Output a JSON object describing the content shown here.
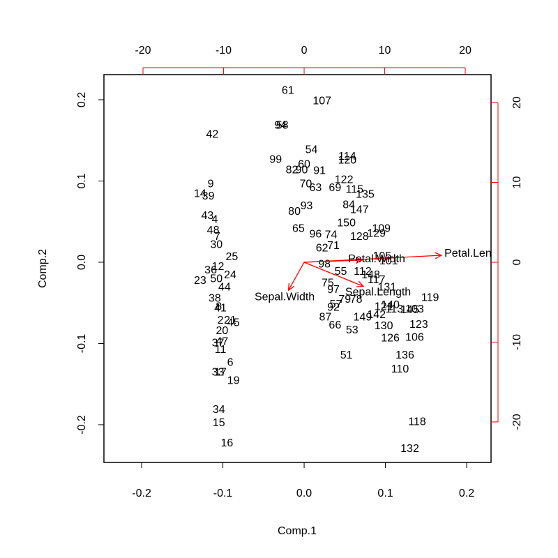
{
  "chart_data": {
    "type": "biplot",
    "xlabel": "Comp.1",
    "ylabel": "Comp.2",
    "xlim": [
      -0.2464,
      0.23
    ],
    "ylim": [
      -0.2464,
      0.2309
    ],
    "xticks": [
      -0.2,
      -0.1,
      {
        "value": 0,
        "label": "0.0"
      },
      0.1,
      0.2
    ],
    "yticks": [
      -0.2,
      -0.1,
      {
        "value": 0,
        "label": "0.0"
      },
      0.1,
      0.2
    ],
    "x2lim": [
      -24.85,
      23.2
    ],
    "y2lim": [
      -25.07,
      23.5
    ],
    "x2ticks": [
      -20,
      -10,
      0,
      10,
      20
    ],
    "y2ticks": [
      -20,
      -10,
      0,
      10,
      20
    ],
    "point_color": "#000000",
    "arrow_color": "#ff0000",
    "points": {
      "labels": [
        "61",
        "107",
        "94",
        "58",
        "42",
        "54",
        "114",
        "120",
        "99",
        "60",
        "82",
        "90",
        "91",
        "9",
        "70",
        "122",
        "14",
        "39",
        "63",
        "69",
        "115",
        "135",
        "43",
        "80",
        "93",
        "84",
        "147",
        "4",
        "48",
        "150",
        "109",
        "65",
        "96",
        "129",
        "7",
        "74",
        "30",
        "62",
        "71",
        "128",
        "25",
        "12",
        "36",
        "24",
        "98",
        "55",
        "105",
        "101",
        "23",
        "50",
        "44",
        "75",
        "112",
        "117",
        "148",
        "131",
        "38",
        "97",
        "119",
        "57",
        "79",
        "78",
        "121",
        "92",
        "140",
        "145",
        "113",
        "41",
        "8",
        "87",
        "149",
        "142",
        "103",
        "2",
        "21",
        "45",
        "66",
        "53",
        "130",
        "123",
        "126",
        "106",
        "20",
        "47",
        "37",
        "11",
        "51",
        "136",
        "6",
        "110",
        "33",
        "17",
        "19",
        "34",
        "15",
        "118",
        "16",
        "132"
      ],
      "x": [
        -0.02,
        0.022,
        -0.029,
        -0.027,
        -0.113,
        0.009,
        0.053,
        0.053,
        -0.035,
        0.0,
        -0.015,
        -0.003,
        0.019,
        -0.115,
        0.002,
        0.049,
        -0.128,
        -0.118,
        0.014,
        0.038,
        0.062,
        0.075,
        -0.119,
        -0.012,
        0.003,
        0.055,
        0.068,
        -0.11,
        -0.112,
        0.052,
        0.095,
        -0.007,
        0.014,
        0.089,
        -0.107,
        0.033,
        -0.108,
        0.022,
        0.036,
        0.068,
        -0.089,
        -0.106,
        -0.115,
        -0.091,
        0.025,
        0.045,
        0.096,
        0.104,
        -0.128,
        -0.108,
        -0.098,
        0.029,
        0.072,
        0.089,
        0.082,
        0.102,
        -0.11,
        0.036,
        0.155,
        0.039,
        0.05,
        0.064,
        0.098,
        0.036,
        0.106,
        0.13,
        0.111,
        -0.103,
        -0.105,
        0.026,
        0.072,
        0.089,
        0.136,
        -0.103,
        -0.091,
        -0.087,
        0.038,
        0.059,
        0.098,
        0.141,
        0.106,
        0.136,
        -0.101,
        -0.101,
        -0.106,
        -0.103,
        0.052,
        0.124,
        -0.091,
        0.118,
        -0.106,
        -0.103,
        -0.087,
        -0.105,
        -0.105,
        0.139,
        -0.095,
        0.13
      ],
      "y": [
        0.211,
        0.198,
        0.168,
        0.168,
        0.157,
        0.138,
        0.13,
        0.125,
        0.126,
        0.12,
        0.113,
        0.113,
        0.112,
        0.096,
        0.096,
        0.101,
        0.084,
        0.081,
        0.091,
        0.091,
        0.089,
        0.083,
        0.057,
        0.062,
        0.069,
        0.07,
        0.064,
        0.052,
        0.039,
        0.048,
        0.041,
        0.041,
        0.034,
        0.035,
        0.031,
        0.033,
        0.021,
        0.017,
        0.02,
        0.031,
        0.006,
        -0.006,
        -0.01,
        -0.016,
        -0.003,
        -0.012,
        0.007,
        0.001,
        -0.023,
        -0.021,
        -0.031,
        -0.026,
        -0.012,
        -0.022,
        -0.016,
        -0.031,
        -0.045,
        -0.034,
        -0.044,
        -0.052,
        -0.046,
        -0.046,
        -0.055,
        -0.056,
        -0.053,
        -0.059,
        -0.058,
        -0.057,
        -0.055,
        -0.068,
        -0.068,
        -0.065,
        -0.058,
        -0.072,
        -0.072,
        -0.075,
        -0.078,
        -0.084,
        -0.079,
        -0.077,
        -0.094,
        -0.093,
        -0.085,
        -0.098,
        -0.1,
        -0.108,
        -0.115,
        -0.115,
        -0.124,
        -0.132,
        -0.136,
        -0.136,
        -0.146,
        -0.182,
        -0.198,
        -0.197,
        -0.223,
        -0.23
      ]
    },
    "arrows": {
      "names": [
        "Sepal.Length",
        "Sepal.Width",
        "Petal.Length",
        "Petal.Width"
      ],
      "x": [
        9.18,
        -2.42,
        21.3,
        9.0
      ],
      "y": [
        -3.76,
        -4.37,
        1.09,
        0.35
      ]
    }
  }
}
